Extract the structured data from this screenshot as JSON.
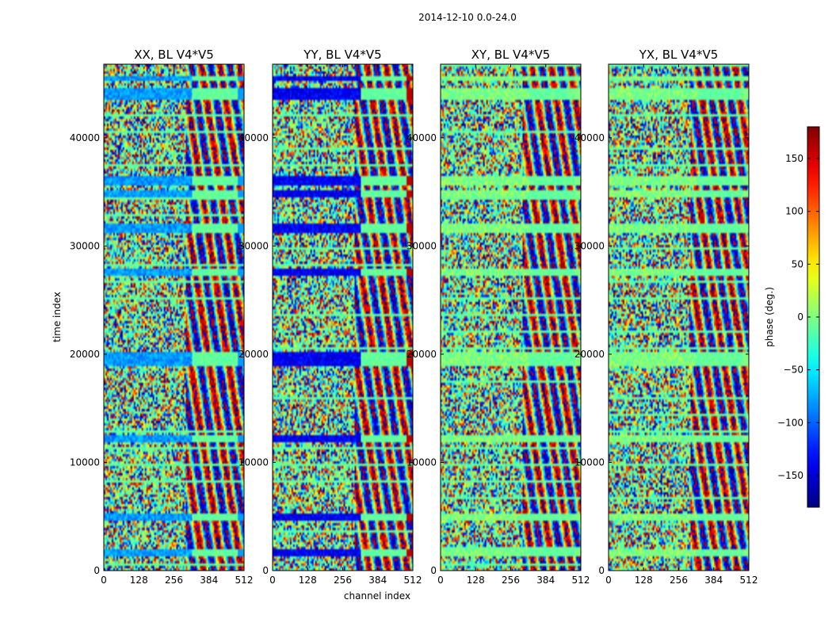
{
  "chart_data": {
    "type": "heatmap",
    "suptitle": "2014-12-10 0.0-24.0",
    "xlabel": "channel index",
    "ylabel": "time index",
    "xlim": [
      0,
      512
    ],
    "ylim": [
      0,
      46800
    ],
    "x_ticks": [
      0,
      128,
      256,
      384,
      512
    ],
    "y_ticks": [
      0,
      10000,
      20000,
      30000,
      40000
    ],
    "panels": [
      {
        "title": "XX, BL V4*V5",
        "flag_phase": -80,
        "edge_phase": -80
      },
      {
        "title": "YY, BL V4*V5",
        "flag_phase": -140,
        "edge_phase": 160
      },
      {
        "title": "XY, BL V4*V5",
        "flag_phase": 0,
        "edge_phase": 0
      },
      {
        "title": "YX, BL V4*V5",
        "flag_phase": 0,
        "edge_phase": 0
      }
    ],
    "flagged_time_bands": [
      [
        1400,
        2000
      ],
      [
        4600,
        5300
      ],
      [
        11800,
        12500
      ],
      [
        18800,
        20200
      ],
      [
        27300,
        28000
      ],
      [
        31200,
        32000
      ],
      [
        34500,
        35200
      ],
      [
        35600,
        36500
      ],
      [
        43400,
        44500
      ],
      [
        45200,
        45800
      ]
    ],
    "colorbar": {
      "label": "phase (deg.)",
      "range": [
        -180,
        180
      ],
      "ticks": [
        -150,
        -100,
        -50,
        0,
        50,
        100,
        150
      ],
      "colormap": "jet"
    }
  }
}
